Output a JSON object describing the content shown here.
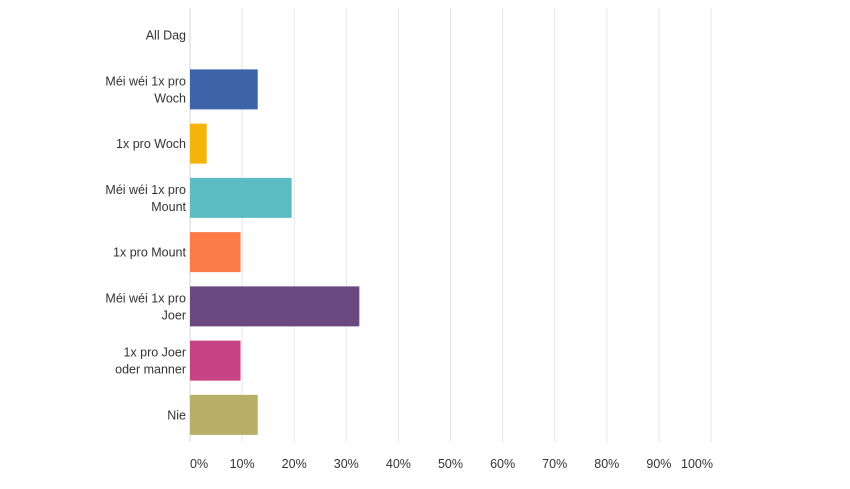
{
  "chart_data": {
    "type": "bar",
    "orientation": "horizontal",
    "title": "",
    "xlabel": "",
    "ylabel": "",
    "categories": [
      [
        "All Dag"
      ],
      [
        "Méi wéi 1x pro",
        "Woch"
      ],
      [
        "1x pro Woch"
      ],
      [
        "Méi wéi 1x pro",
        "Mount"
      ],
      [
        "1x pro Mount"
      ],
      [
        "Méi wéi 1x pro",
        "Joer"
      ],
      [
        "1x pro Joer",
        "oder manner"
      ],
      [
        "Nie"
      ]
    ],
    "values": [
      0,
      13.0,
      3.2,
      19.5,
      9.7,
      32.5,
      9.7,
      13.0
    ],
    "colors": [
      "#3d64a8",
      "#3d64a8",
      "#f5b40b",
      "#5bbcc4",
      "#fb7a45",
      "#6a4880",
      "#c84383",
      "#b8ae68"
    ],
    "xlim": [
      0,
      100
    ],
    "xticks": [
      "0%",
      "10%",
      "20%",
      "30%",
      "40%",
      "50%",
      "60%",
      "70%",
      "80%",
      "90%",
      "100%"
    ],
    "grid": true,
    "legend": "none"
  }
}
